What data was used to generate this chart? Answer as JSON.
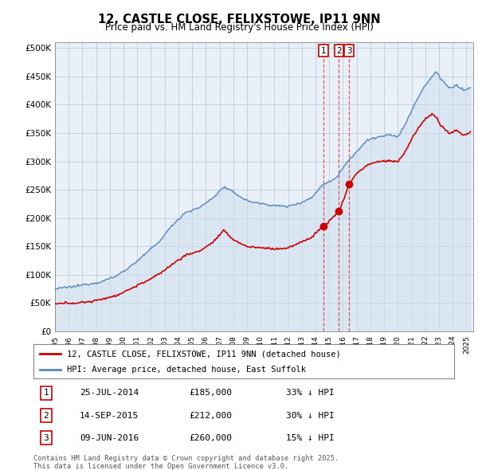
{
  "title": "12, CASTLE CLOSE, FELIXSTOWE, IP11 9NN",
  "subtitle": "Price paid vs. HM Land Registry's House Price Index (HPI)",
  "ytick_values": [
    0,
    50000,
    100000,
    150000,
    200000,
    250000,
    300000,
    350000,
    400000,
    450000,
    500000
  ],
  "ylim": [
    0,
    510000
  ],
  "xlim_start": 1995.0,
  "xlim_end": 2025.5,
  "legend1": "12, CASTLE CLOSE, FELIXSTOWE, IP11 9NN (detached house)",
  "legend2": "HPI: Average price, detached house, East Suffolk",
  "transactions": [
    {
      "num": 1,
      "date": "25-JUL-2014",
      "price": "£185,000",
      "hpi": "33% ↓ HPI",
      "year": 2014.56
    },
    {
      "num": 2,
      "date": "14-SEP-2015",
      "price": "£212,000",
      "hpi": "30% ↓ HPI",
      "year": 2015.71
    },
    {
      "num": 3,
      "date": "09-JUN-2016",
      "price": "£260,000",
      "hpi": "15% ↓ HPI",
      "year": 2016.44
    }
  ],
  "transaction_prices": [
    185000,
    212000,
    260000
  ],
  "footnote": "Contains HM Land Registry data © Crown copyright and database right 2025.\nThis data is licensed under the Open Government Licence v3.0.",
  "background_color": "#ffffff",
  "plot_bg_color": "#eaf0f8",
  "grid_color": "#aabbcc",
  "line_color_red": "#cc0000",
  "line_color_blue": "#5588bb",
  "fill_color_blue": "#ccdded"
}
